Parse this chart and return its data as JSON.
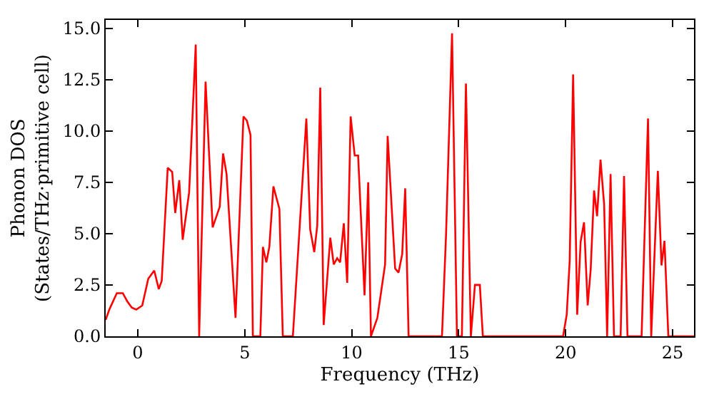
{
  "chart_data": {
    "type": "line",
    "xlabel": "Frequency (THz)",
    "ylabel": "Phonon DOS\n(States/THz·primitive cell)",
    "xlim": [
      -1.5,
      26
    ],
    "xticks": [
      0,
      5,
      10,
      15,
      20,
      25
    ],
    "ylim": [
      0,
      15.4
    ],
    "yticks": [
      {
        "value": 0,
        "label": "0.0"
      },
      {
        "value": 2.5,
        "label": "2.5"
      },
      {
        "value": 5,
        "label": "5.0"
      },
      {
        "value": 7.5,
        "label": "7.5"
      },
      {
        "value": 10,
        "label": "10.0"
      },
      {
        "value": 12.5,
        "label": "12.5"
      },
      {
        "value": 15,
        "label": "15.0"
      }
    ],
    "marker": "none",
    "line_style": "solid",
    "x": [
      -1.5,
      -1.33,
      -0.98,
      -0.7,
      -0.49,
      -0.28,
      -0.07,
      0.21,
      0.49,
      0.77,
      0.98,
      1.12,
      1.4,
      1.61,
      1.75,
      1.94,
      2.1,
      2.4,
      2.71,
      2.87,
      3.17,
      3.5,
      3.83,
      3.99,
      4.15,
      4.57,
      4.94,
      5.1,
      5.27,
      5.38,
      5.73,
      5.85,
      6.01,
      6.15,
      6.34,
      6.62,
      6.78,
      7.25,
      7.53,
      7.88,
      8.06,
      8.25,
      8.39,
      8.53,
      8.69,
      9.0,
      9.16,
      9.32,
      9.46,
      9.63,
      9.79,
      9.95,
      10.14,
      10.3,
      10.6,
      10.77,
      10.9,
      11.2,
      11.56,
      11.68,
      12.03,
      12.19,
      12.36,
      12.5,
      12.66,
      14.22,
      14.41,
      14.69,
      14.92,
      15.15,
      15.34,
      15.57,
      15.76,
      15.99,
      16.13,
      19.88,
      20.05,
      20.19,
      20.35,
      20.54,
      20.7,
      20.86,
      21.03,
      21.17,
      21.33,
      21.47,
      21.63,
      21.8,
      21.94,
      22.1,
      22.26,
      22.57,
      22.73,
      22.89,
      23.55,
      23.85,
      24.0,
      24.31,
      24.48,
      24.62,
      24.8,
      26
    ],
    "series": [
      {
        "color": "#ff0000",
        "values": [
          0.8,
          1.3,
          2.1,
          2.1,
          1.7,
          1.4,
          1.3,
          1.5,
          2.8,
          3.2,
          2.3,
          2.7,
          8.2,
          8.0,
          6.0,
          7.6,
          4.7,
          7.0,
          14.2,
          0,
          12.4,
          5.3,
          6.3,
          8.9,
          7.9,
          0.9,
          10.7,
          10.5,
          9.8,
          0,
          0,
          4.35,
          3.6,
          4.35,
          7.3,
          6.2,
          0,
          0,
          4.7,
          10.6,
          5.2,
          4.1,
          5.4,
          12.1,
          0.55,
          4.8,
          3.5,
          3.8,
          3.6,
          5.5,
          2.6,
          10.7,
          8.8,
          8.8,
          2.0,
          7.5,
          0,
          0.9,
          3.5,
          9.75,
          3.3,
          3.1,
          4.0,
          7.2,
          0,
          0,
          4.95,
          14.75,
          0,
          0,
          12.3,
          0,
          2.5,
          2.5,
          0,
          0,
          1.05,
          3.7,
          12.75,
          1.05,
          4.6,
          5.55,
          1.5,
          3.25,
          7.1,
          5.85,
          8.6,
          6.4,
          0,
          7.9,
          0,
          0,
          7.8,
          0,
          0,
          10.6,
          0,
          8.05,
          3.45,
          4.65,
          0,
          0
        ]
      }
    ]
  }
}
